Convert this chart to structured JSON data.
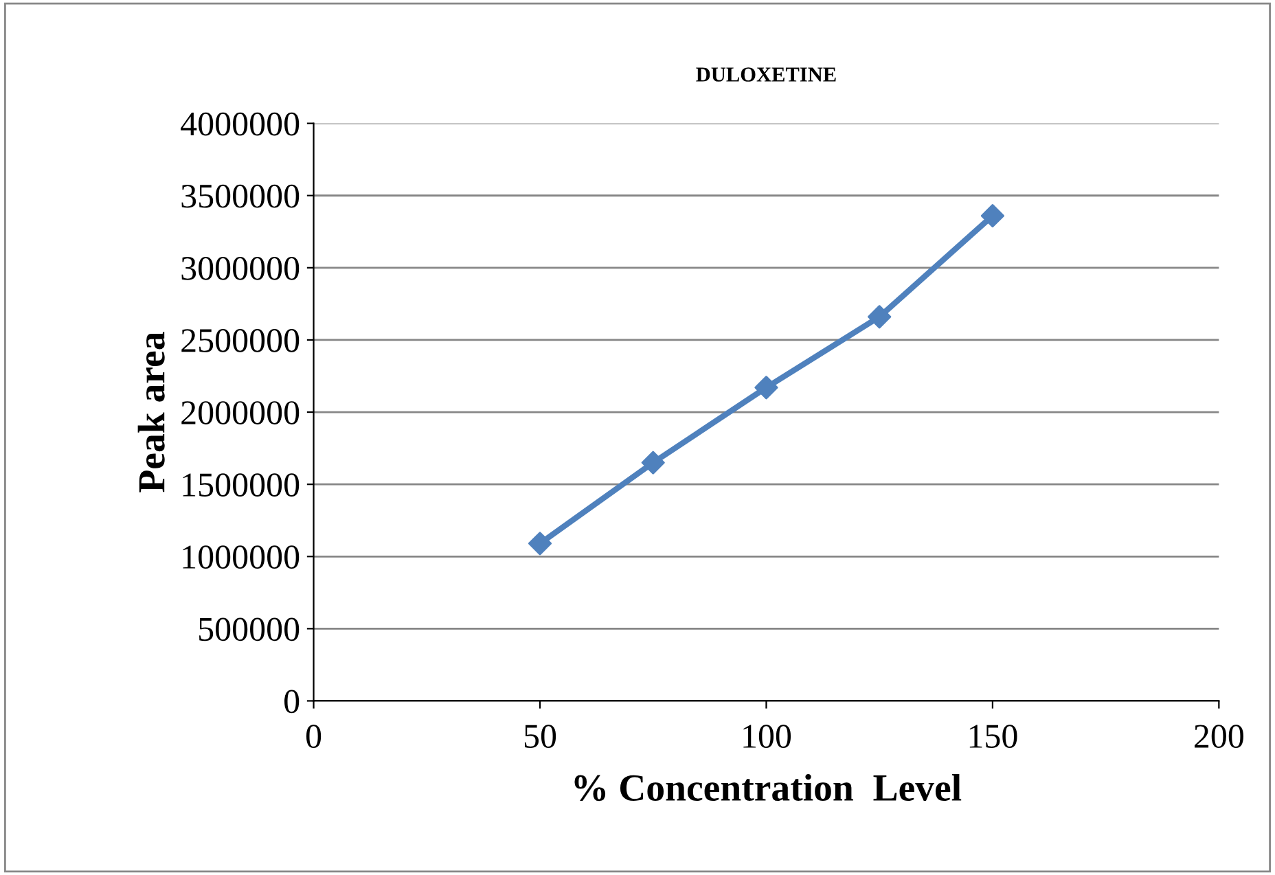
{
  "chart_data": {
    "type": "line",
    "title": "DULOXETINE",
    "xlabel": "% Concentration  Level",
    "ylabel": "Peak area",
    "x": [
      50,
      75,
      100,
      125,
      150
    ],
    "series": [
      {
        "color": "#4f81bd",
        "values": [
          1090000,
          1650000,
          2170000,
          2660000,
          3360000
        ]
      }
    ],
    "xlim": [
      0,
      200
    ],
    "xticks": [
      0,
      50,
      100,
      150,
      200
    ],
    "ylim": [
      0,
      4000000
    ],
    "yticks": [
      0,
      500000,
      1000000,
      1500000,
      2000000,
      2500000,
      3000000,
      3500000,
      4000000
    ],
    "grid": "y",
    "marker": "diamond",
    "line_style": "solid",
    "legend": false
  }
}
